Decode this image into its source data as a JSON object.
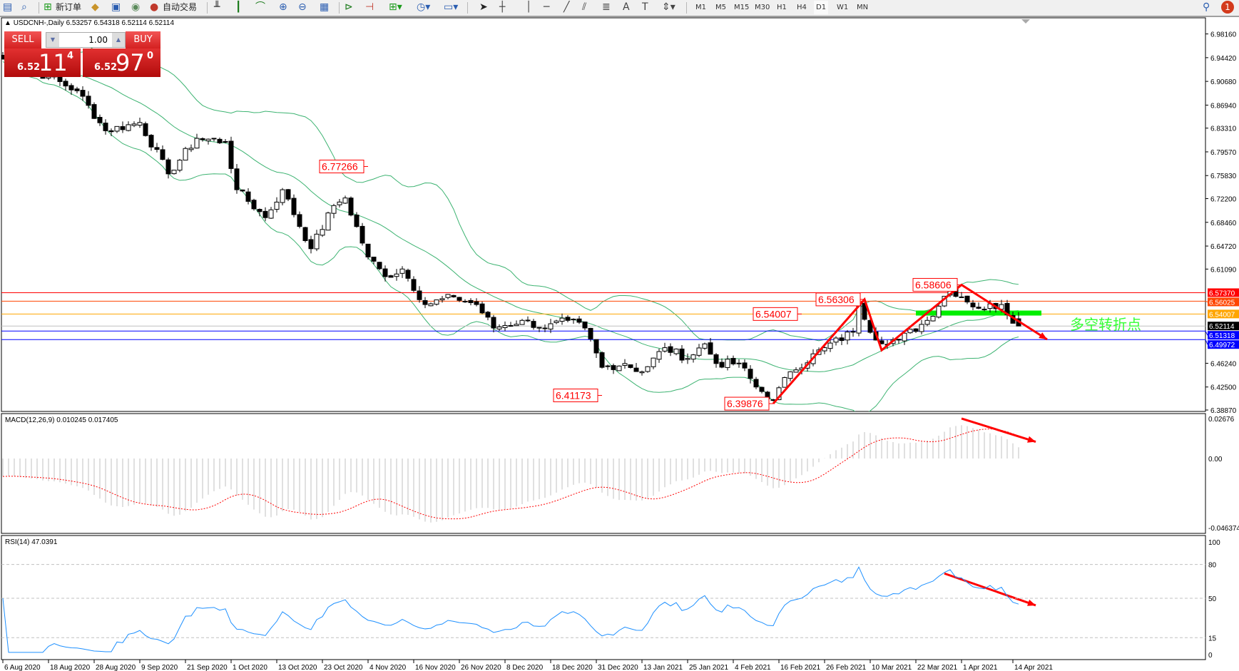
{
  "toolbar": {
    "new_order_label": "新订单",
    "auto_trading_label": "自动交易",
    "timeframes": [
      "M1",
      "M5",
      "M15",
      "M30",
      "H1",
      "H4",
      "D1",
      "W1",
      "MN"
    ],
    "active_timeframe": "D1",
    "notification_count": "1"
  },
  "chart": {
    "symbol_title": "USDCNH-,Daily",
    "ohlc_text": "6.53257 6.54318 6.52114 6.52114",
    "collapse_glyph": "▲"
  },
  "trade_panel": {
    "sell_label": "SELL",
    "buy_label": "BUY",
    "lot": "1.00",
    "sell_price": {
      "prefix": "6.52",
      "big": "11",
      "sup": "4"
    },
    "buy_price": {
      "prefix": "6.52",
      "big": "97",
      "sup": "0"
    },
    "color": "#d42020"
  },
  "chart_data": {
    "type": "candlestick",
    "price_axis_ticks": [
      "6.98160",
      "6.94420",
      "6.90680",
      "6.86940",
      "6.83310",
      "6.79570",
      "6.75830",
      "6.72200",
      "6.68460",
      "6.64720",
      "6.61090",
      "6.46240",
      "6.42500",
      "6.38870"
    ],
    "price_range": [
      6.3887,
      6.9816
    ],
    "date_ticks": [
      "6 Aug 2020",
      "18 Aug 2020",
      "28 Aug 2020",
      "9 Sep 2020",
      "21 Sep 2020",
      "1 Oct 2020",
      "13 Oct 2020",
      "23 Oct 2020",
      "4 Nov 2020",
      "16 Nov 2020",
      "26 Nov 2020",
      "8 Dec 2020",
      "18 Dec 2020",
      "31 Dec 2020",
      "13 Jan 2021",
      "25 Jan 2021",
      "4 Feb 2021",
      "16 Feb 2021",
      "26 Feb 2021",
      "10 Mar 2021",
      "22 Mar 2021",
      "1 Apr 2021",
      "14 Apr 2021"
    ],
    "first_date": "2020-08-06",
    "last_bar": {
      "date": "2021-04-15",
      "open": 6.53257,
      "high": 6.54318,
      "low": 6.52114,
      "close": 6.52114
    },
    "close_path": [
      [
        "2020-08-06",
        6.942
      ],
      [
        "2020-08-18",
        6.914
      ],
      [
        "2020-08-25",
        6.892
      ],
      [
        "2020-09-01",
        6.829
      ],
      [
        "2020-09-09",
        6.842
      ],
      [
        "2020-09-16",
        6.761
      ],
      [
        "2020-09-23",
        6.817
      ],
      [
        "2020-09-30",
        6.812
      ],
      [
        "2020-10-02",
        6.736
      ],
      [
        "2020-10-09",
        6.692
      ],
      [
        "2020-10-14",
        6.736
      ],
      [
        "2020-10-21",
        6.643
      ],
      [
        "2020-10-27",
        6.711
      ],
      [
        "2020-10-29",
        6.723
      ],
      [
        "2020-11-04",
        6.63
      ],
      [
        "2020-11-09",
        6.599
      ],
      [
        "2020-11-12",
        6.611
      ],
      [
        "2020-11-18",
        6.555
      ],
      [
        "2020-11-25",
        6.567
      ],
      [
        "2020-12-01",
        6.555
      ],
      [
        "2020-12-04",
        6.518
      ],
      [
        "2020-12-11",
        6.53
      ],
      [
        "2020-12-17",
        6.518
      ],
      [
        "2020-12-23",
        6.53
      ],
      [
        "2020-12-29",
        6.518
      ],
      [
        "2021-01-04",
        6.456
      ],
      [
        "2021-01-08",
        6.462
      ],
      [
        "2021-01-13",
        6.449
      ],
      [
        "2021-01-19",
        6.487
      ],
      [
        "2021-01-25",
        6.47
      ],
      [
        "2021-01-28",
        6.493
      ],
      [
        "2021-02-01",
        6.462
      ],
      [
        "2021-02-05",
        6.462
      ],
      [
        "2021-02-10",
        6.425
      ],
      [
        "2021-02-15",
        6.405
      ],
      [
        "2021-02-18",
        6.449
      ],
      [
        "2021-02-26",
        6.487
      ],
      [
        "2021-03-05",
        6.512
      ],
      [
        "2021-03-08",
        6.555
      ],
      [
        "2021-03-11",
        6.499
      ],
      [
        "2021-03-17",
        6.499
      ],
      [
        "2021-03-24",
        6.53
      ],
      [
        "2021-03-30",
        6.581
      ],
      [
        "2021-04-01",
        6.567
      ],
      [
        "2021-04-06",
        6.549
      ],
      [
        "2021-04-12",
        6.555
      ],
      [
        "2021-04-15",
        6.52114
      ]
    ],
    "indicators": {
      "bollinger": {
        "period": 20,
        "deviation": 2,
        "color": "#3cb371"
      },
      "macd": {
        "label": "MACD(12,26,9) 0.010245 0.017405",
        "fast": 12,
        "slow": 26,
        "signal": 9,
        "axis_ticks": [
          "0.02676",
          "0.00",
          "-0.046374"
        ],
        "range": [
          -0.046374,
          0.02676
        ],
        "hist_color": "#c0c0c0",
        "signal_color": "#ff0000"
      },
      "rsi": {
        "label": "RSI(14) 47.0391",
        "period": 14,
        "levels": [
          80,
          50,
          15
        ],
        "axis_ticks": [
          "100",
          "80",
          "50",
          "15",
          "0"
        ],
        "color": "#1e90ff"
      }
    },
    "horizontal_lines": [
      {
        "price": "6.57370",
        "color": "#ff0000",
        "label_text": "#ffffff"
      },
      {
        "price": "6.56025",
        "color": "#ff4500",
        "label_text": "#ffffff"
      },
      {
        "price": "6.54007",
        "color": "#ffa500",
        "label_text": "#ffffff"
      },
      {
        "price": "6.52114",
        "color": "#c0c0c0",
        "label_bg": "#000000",
        "label_text": "#ffffff"
      },
      {
        "price": "6.51318",
        "color": "#0000ff",
        "label_text": "#ffffff"
      },
      {
        "price": "6.49972",
        "color": "#0000ff",
        "label_text": "#ffffff"
      }
    ],
    "price_labels": [
      {
        "text": "6.77266",
        "date": "2020-11-04"
      },
      {
        "text": "6.41173",
        "date": "2021-01-04"
      },
      {
        "text": "6.39876",
        "date": "2021-02-15"
      },
      {
        "text": "6.54007",
        "date": "2021-02-22"
      },
      {
        "text": "6.56306",
        "date": "2021-03-09"
      },
      {
        "text": "6.58606",
        "date": "2021-04-01"
      }
    ],
    "trend_arrows": [
      {
        "pane": "main",
        "points": [
          [
            "2021-02-15",
            6.3988
          ],
          [
            "2021-03-09",
            6.5631
          ],
          [
            "2021-03-12",
            6.483
          ],
          [
            "2021-04-01",
            6.586
          ],
          [
            "2021-04-22",
            6.5
          ]
        ]
      },
      {
        "pane": "macd",
        "points": [
          [
            "2021-04-01",
            0.0268
          ],
          [
            "2021-04-20",
            0.0112
          ]
        ]
      },
      {
        "pane": "rsi",
        "points": [
          [
            "2021-03-29",
            72
          ],
          [
            "2021-04-20",
            43.7
          ]
        ]
      }
    ],
    "zone": {
      "price": 6.541,
      "from": "2021-03-22",
      "to": "2021-04-21",
      "color": "#00ee00"
    },
    "zone_text": {
      "text": "多空转折点",
      "color": "#33ff33"
    },
    "annotation_color": "#ff0000"
  }
}
